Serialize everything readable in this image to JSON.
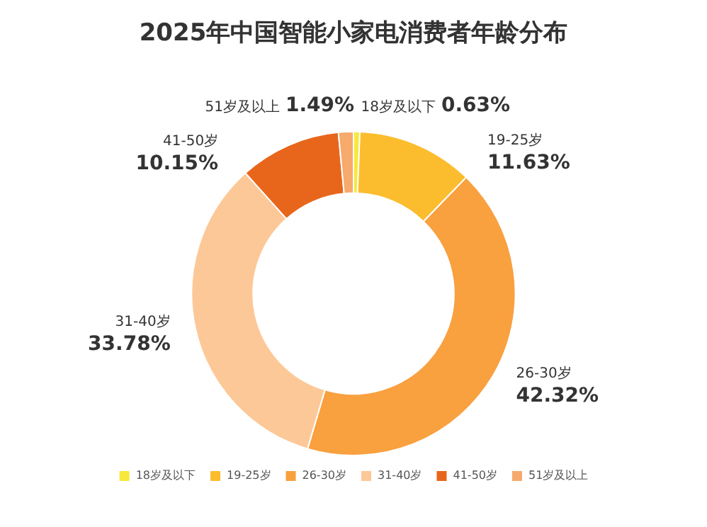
{
  "chart_data": {
    "type": "donut",
    "title": "2025年中国智能小家电消费者年龄分布",
    "categories": [
      "18岁及以下",
      "19-25岁",
      "26-30岁",
      "31-40岁",
      "41-50岁",
      "51岁及以上"
    ],
    "values": [
      0.63,
      11.63,
      42.32,
      33.78,
      10.15,
      1.49
    ],
    "value_labels": [
      "0.63%",
      "11.63%",
      "42.32%",
      "33.78%",
      "10.15%",
      "1.49%"
    ],
    "colors": [
      "#f7e83c",
      "#fbbd2e",
      "#f9a03f",
      "#fdc897",
      "#e8661b",
      "#f6aa6c"
    ],
    "legend": "bottom"
  }
}
